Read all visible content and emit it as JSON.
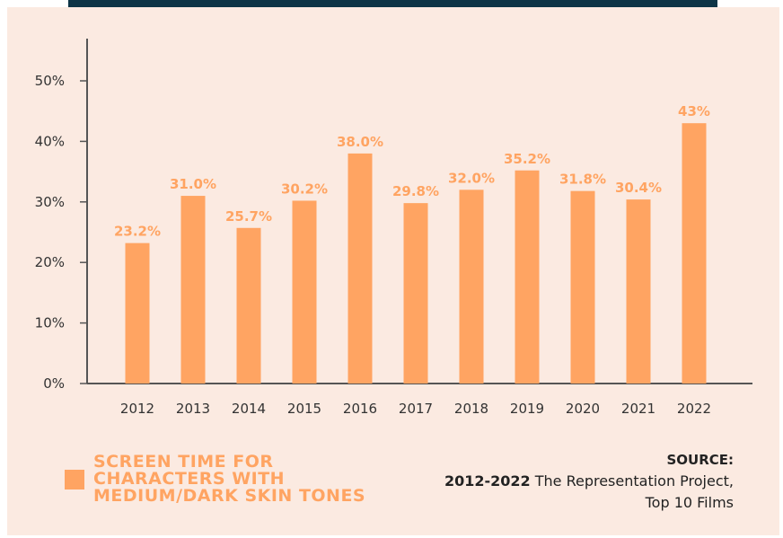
{
  "chart_data": {
    "type": "bar",
    "categories": [
      "2012",
      "2013",
      "2014",
      "2015",
      "2016",
      "2017",
      "2018",
      "2019",
      "2020",
      "2021",
      "2022"
    ],
    "values": [
      23.2,
      31.0,
      25.7,
      30.2,
      38.0,
      29.8,
      32.0,
      35.2,
      31.8,
      30.4,
      43
    ],
    "data_labels": [
      "23.2%",
      "31.0%",
      "25.7%",
      "30.2%",
      "38.0%",
      "29.8%",
      "32.0%",
      "35.2%",
      "31.8%",
      "30.4%",
      "43%"
    ],
    "y_ticks": [
      0,
      10,
      20,
      30,
      40,
      50
    ],
    "y_tick_labels": [
      "0%",
      "10%",
      "20%",
      "30%",
      "40%",
      "50%"
    ],
    "ylim": [
      0,
      50
    ],
    "title": "",
    "xlabel": "",
    "ylabel": "",
    "grid": false,
    "legend_position": "bottom-left",
    "bar_color": "#ffa462",
    "label_color": "#ffa462",
    "axis_color": "#555555",
    "tick_label_color": "#333333"
  },
  "legend": {
    "label": "SCREEN TIME FOR CHARACTERS WITH MEDIUM/DARK SKIN TONES",
    "color": "#ffa462"
  },
  "source": {
    "title": "SOURCE:",
    "range": "2012-2022",
    "line1_rest": " The Representation Project,",
    "line2": "Top 10 Films"
  },
  "colors": {
    "background": "#fbeae1",
    "top_bar": "#0d3446"
  }
}
